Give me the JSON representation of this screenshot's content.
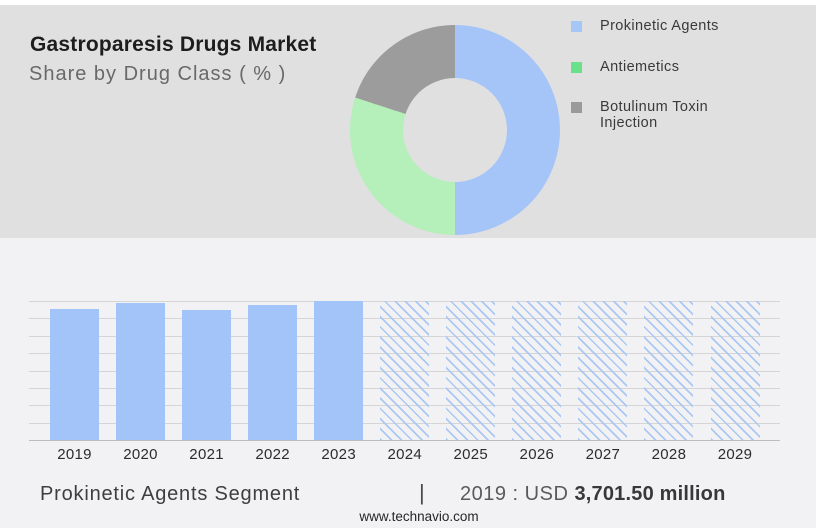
{
  "header": {
    "title": "Gastroparesis Drugs Market",
    "subtitle": "Share by Drug Class ( % )"
  },
  "footer": {
    "segment_label": "Prokinetic Agents Segment",
    "separator": "|",
    "value_prefix": "2019 : USD ",
    "value_bold": "3,701.50 million",
    "website": "www.technavio.com"
  },
  "colors": {
    "top_panel_bg": "#e0e0e1",
    "lower_panel_bg": "#f2f2f4",
    "gridline": "#d5d5d5",
    "axis_baseline": "#bdbdbd"
  },
  "chart_data": [
    {
      "type": "pie",
      "subtype": "donut",
      "title": "Share by Drug Class ( % )",
      "labels": [
        "Prokinetic Agents",
        "Antiemetics",
        "Botulinum Toxin Injection"
      ],
      "values": [
        50,
        30,
        20
      ],
      "unit": "%",
      "value_note": "no numeric data labels shown; shares estimated from arc angles",
      "slice_colors": [
        "#a5c5f8",
        "#b5efb9",
        "#9c9c9c"
      ],
      "legend_colors": [
        "#a5c6f6",
        "#69e18a",
        "#9a9a9a"
      ],
      "start_angle": "12 o'clock",
      "direction": "clockwise",
      "legend_position": "right"
    },
    {
      "type": "bar",
      "title": "Prokinetic Agents Segment",
      "categories": [
        "2019",
        "2020",
        "2021",
        "2022",
        "2023",
        "2024",
        "2025",
        "2026",
        "2027",
        "2028",
        "2029"
      ],
      "values": [
        94,
        98,
        93.5,
        97,
        100,
        100,
        100,
        100,
        100,
        100,
        100
      ],
      "value_note": "relative bar heights (max = 100); y-axis has no tick labels",
      "xlabel": "",
      "ylabel": "",
      "ylim": [
        0,
        100
      ],
      "gridline_divisions": 8,
      "grid": "horizontal only",
      "historical_years": [
        "2019",
        "2020",
        "2021",
        "2022",
        "2023"
      ],
      "forecast_years": [
        "2024",
        "2025",
        "2026",
        "2027",
        "2028",
        "2029"
      ],
      "forecast_style": "diagonal-hatch",
      "bar_color": "#a3c4f8",
      "hatch_line_color": "#abc8f2",
      "annotation": "2019 : USD 3,701.50 million"
    }
  ]
}
